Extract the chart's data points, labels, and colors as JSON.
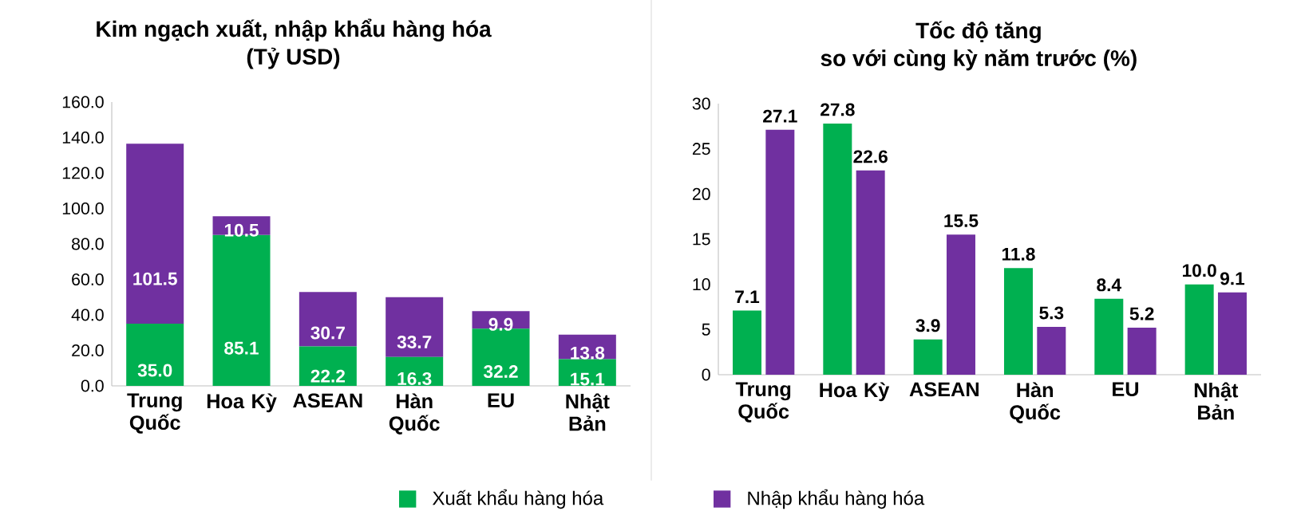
{
  "chart_data": [
    {
      "type": "bar",
      "title": "Kim ngạch xuất, nhập khẩu hàng hóa",
      "subtitle": "(Tỷ USD)",
      "stacked": true,
      "legend": "bottom",
      "categories": [
        "Trung Quốc",
        "Hoa Kỳ",
        "ASEAN",
        "Hàn Quốc",
        "EU",
        "Nhật Bản"
      ],
      "ylim": [
        0,
        160
      ],
      "yticks": [
        {
          "value": 0,
          "label": "0.0"
        },
        {
          "value": 20,
          "label": "20.0"
        },
        {
          "value": 40,
          "label": "40.0"
        },
        {
          "value": 60,
          "label": "60.0"
        },
        {
          "value": 80,
          "label": "80.0"
        },
        {
          "value": 100,
          "label": "100.0"
        },
        {
          "value": 120,
          "label": "120.0"
        },
        {
          "value": 140,
          "label": "140.0"
        },
        {
          "value": 160,
          "label": "160.0"
        }
      ],
      "series": [
        {
          "name": "Xuất khẩu hàng hóa",
          "color": "#00b050",
          "values": [
            35.0,
            85.1,
            22.2,
            16.3,
            32.2,
            15.1
          ],
          "value_labels": [
            "35.0",
            "85.1",
            "22.2",
            "16.3",
            "32.2",
            "15.1"
          ]
        },
        {
          "name": "Nhập khẩu hàng hóa",
          "color": "#7030a0",
          "values": [
            101.5,
            10.5,
            30.7,
            33.7,
            9.9,
            13.8
          ],
          "value_labels": [
            "101.5",
            "10.5",
            "30.7",
            "33.7",
            "9.9",
            "13.8"
          ]
        }
      ]
    },
    {
      "type": "bar",
      "title": "Tốc độ tăng",
      "subtitle": "so với cùng kỳ năm trước (%)",
      "categories": [
        "Trung Quốc",
        "Hoa Kỳ",
        "ASEAN",
        "Hàn Quốc",
        "EU",
        "Nhật Bản"
      ],
      "ylim": [
        0,
        30
      ],
      "yticks": [
        0,
        5,
        10,
        15,
        20,
        25,
        30
      ],
      "series": [
        {
          "color": "#00b050",
          "values": [
            7.1,
            27.8,
            3.9,
            11.8,
            8.4,
            10.0
          ],
          "value_labels": [
            "7.1",
            "27.8",
            "3.9",
            "11.8",
            "8.4",
            "10.0"
          ]
        },
        {
          "color": "#7030a0",
          "values": [
            27.1,
            22.6,
            15.5,
            5.3,
            5.2,
            9.1
          ],
          "value_labels": [
            "27.1",
            "22.6",
            "15.5",
            "5.3",
            "5.2",
            "9.1"
          ]
        }
      ]
    }
  ]
}
